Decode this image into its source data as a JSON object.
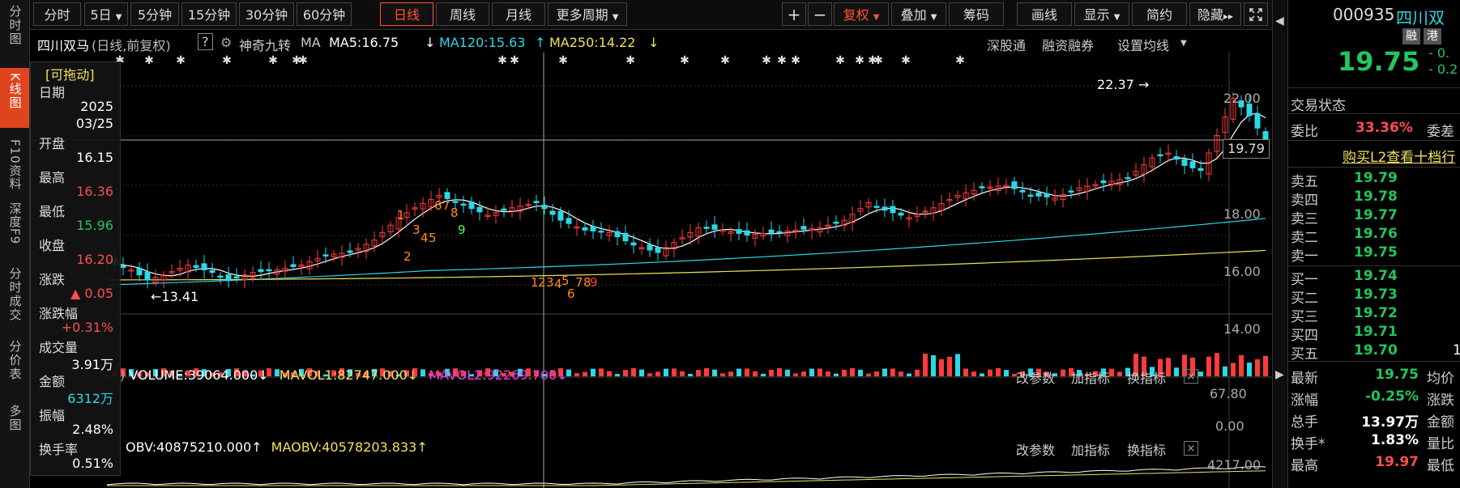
{
  "left_nav": [
    {
      "label": "分时图",
      "active": false
    },
    {
      "label": "K线图",
      "active": true
    },
    {
      "label": "F10资料",
      "active": false
    },
    {
      "label": "深度F9",
      "active": false
    },
    {
      "label": "分时成交",
      "active": false
    },
    {
      "label": "分价表",
      "active": false
    },
    {
      "label": "多图",
      "active": false
    }
  ],
  "toolbar": {
    "periods": [
      "分时",
      "5日",
      "5分钟",
      "15分钟",
      "30分钟",
      "60分钟",
      "日线",
      "周线",
      "月线",
      "更多周期"
    ],
    "active_period": "日线",
    "plus": "+",
    "minus": "−",
    "right_buttons": [
      "复权",
      "叠加",
      "筹码",
      "画线",
      "显示",
      "简约",
      "隐藏"
    ]
  },
  "info": {
    "name": "四川双马",
    "mode": "(日线,前复权)",
    "help": "?",
    "indicator": "神奇九转",
    "ma_label": "MA",
    "ma5": "MA5:16.75",
    "ma120": "MA120:15.63",
    "ma250": "MA250:14.22",
    "links": [
      "深股通",
      "融资融券",
      "设置均线"
    ]
  },
  "data_window": {
    "title": "[可拖动]",
    "date_label": "日期",
    "date_year": "2025",
    "date_md": "03/25",
    "open_label": "开盘",
    "open": "16.15",
    "high_label": "最高",
    "high": "16.36",
    "low_label": "最低",
    "low": "15.96",
    "close_label": "收盘",
    "close": "16.20",
    "chg_label": "涨跌",
    "chg": "▲ 0.05",
    "pct_label": "涨跌幅",
    "pct": "+0.31%",
    "vol_label": "成交量",
    "vol": "3.91万",
    "amt_label": "金额",
    "amt": "6312万",
    "amp_label": "振幅",
    "amp": "2.48%",
    "turn_label": "换手率",
    "turn": "0.51%"
  },
  "price_axis": {
    "ticks": [
      "22.00",
      "20.00",
      "18.00",
      "16.00",
      "14.00"
    ],
    "current": "19.79",
    "high_marker": "22.37",
    "low_marker": "13.41"
  },
  "nine_turn_labels": {
    "up": [
      "1",
      "2",
      "3",
      "4",
      "5",
      "6",
      "7",
      "8",
      "9"
    ],
    "down": [
      "1",
      "2",
      "3",
      "4",
      "5",
      "6",
      "7",
      "8",
      "9"
    ]
  },
  "volume_panel": {
    "prefix": ")",
    "volume": "VOLUME:39064.000",
    "mavol1": "MAVOL1:82747.000",
    "mavol2": "MAVOL2:92269.700",
    "buttons": [
      "改参数",
      "加指标",
      "换指标"
    ],
    "close": "×",
    "axis": [
      "67.80",
      "0.00"
    ]
  },
  "obv_panel": {
    "obv": "OBV:40875210.000",
    "maobv": "MAOBV:40578203.833",
    "buttons": [
      "改参数",
      "加指标",
      "换指标"
    ],
    "close": "×",
    "axis": [
      "4217.00"
    ]
  },
  "quote": {
    "code": "000935",
    "name": "四川双",
    "badges": [
      "融",
      "港"
    ],
    "price": "19.75",
    "change_a": "- 0.",
    "change_b": "- 0.2",
    "trade_status_label": "交易状态",
    "weibi_label": "委比",
    "weibi": "33.36%",
    "weicha_label": "委差",
    "l2_link": "购买L2查看十档行",
    "asks": [
      {
        "label": "卖五",
        "price": "19.79"
      },
      {
        "label": "卖四",
        "price": "19.78"
      },
      {
        "label": "卖三",
        "price": "19.77"
      },
      {
        "label": "卖二",
        "price": "19.76"
      },
      {
        "label": "卖一",
        "price": "19.75"
      }
    ],
    "bids": [
      {
        "label": "买一",
        "price": "19.74"
      },
      {
        "label": "买二",
        "price": "19.73"
      },
      {
        "label": "买三",
        "price": "19.72"
      },
      {
        "label": "买四",
        "price": "19.71"
      },
      {
        "label": "买五",
        "price": "19.70",
        "vol": "1"
      }
    ],
    "stats": [
      {
        "label": "最新",
        "value": "19.75",
        "color": "green",
        "label2": "均价"
      },
      {
        "label": "涨幅",
        "value": "-0.25%",
        "color": "green",
        "label2": "涨跌"
      },
      {
        "label": "总手",
        "value": "13.97万",
        "color": "white",
        "label2": "金额"
      },
      {
        "label": "换手*",
        "value": "1.83%",
        "color": "white",
        "label2": "量比"
      },
      {
        "label": "最高",
        "value": "19.97",
        "color": "red",
        "label2": "最低"
      }
    ]
  },
  "colors": {
    "up": "#ff3b3b",
    "down": "#2cd7e8",
    "ma5": "#ffffff",
    "ma120": "#2cd7e8",
    "ma250": "#f0e060",
    "accent": "#e0441e"
  }
}
